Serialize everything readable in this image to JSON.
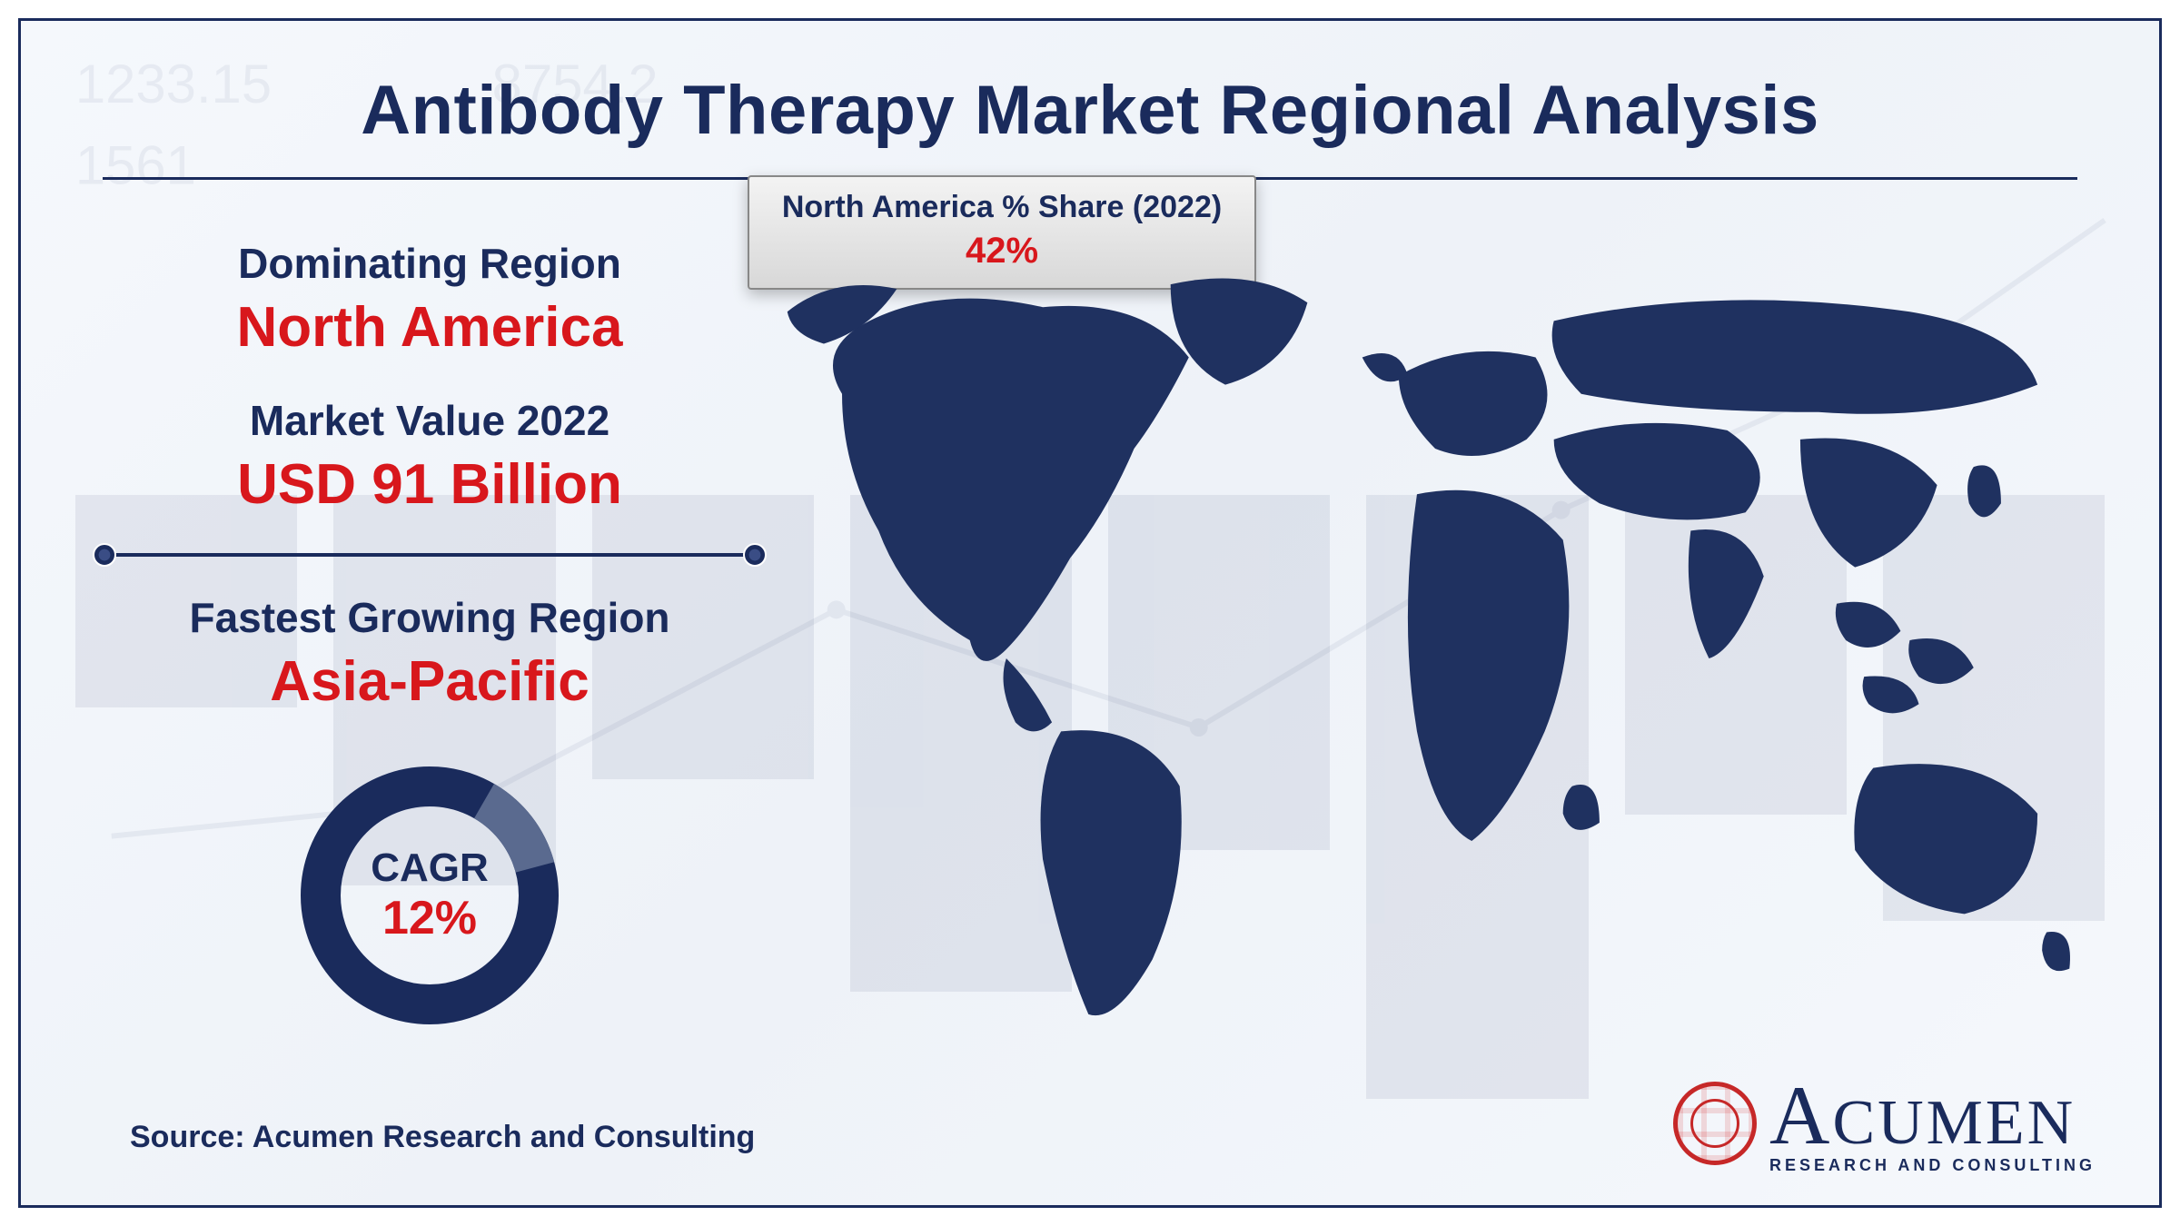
{
  "title": "Antibody Therapy Market Regional Analysis",
  "colors": {
    "primary": "#1a2b5c",
    "accent": "#d8171c",
    "map_fill": "#1f3160",
    "ring_gap": "#5a6a8f",
    "frame_bg_start": "#f5f8fc",
    "frame_bg_end": "#eef2f8",
    "callout_border": "#888888"
  },
  "stats": [
    {
      "label": "Dominating Region",
      "value": "North America"
    },
    {
      "label": "Market Value 2022",
      "value": "USD 91 Billion"
    },
    {
      "label": "Fastest Growing Region",
      "value": "Asia-Pacific"
    }
  ],
  "cagr": {
    "label": "CAGR",
    "value_text": "12%",
    "value_pct": 12,
    "ring_stroke": 44,
    "ring_radius": 120,
    "ring_color": "#1a2b5c",
    "ring_gap_color": "#5a6a8f",
    "gap_start_deg": -60,
    "gap_extent_deg": 45
  },
  "callout": {
    "label": "North America % Share (2022)",
    "value": "42%",
    "arrow_color": "#c21f1f"
  },
  "source": "Source: Acumen Research and Consulting",
  "logo": {
    "name": "ACUMEN",
    "tagline": "RESEARCH AND CONSULTING"
  },
  "typography": {
    "title_fontsize": 76,
    "label_fontsize": 46,
    "value_fontsize": 62,
    "cagr_label_fontsize": 44,
    "cagr_value_fontsize": 52,
    "callout_label_fontsize": 34,
    "callout_value_fontsize": 40,
    "source_fontsize": 34
  }
}
